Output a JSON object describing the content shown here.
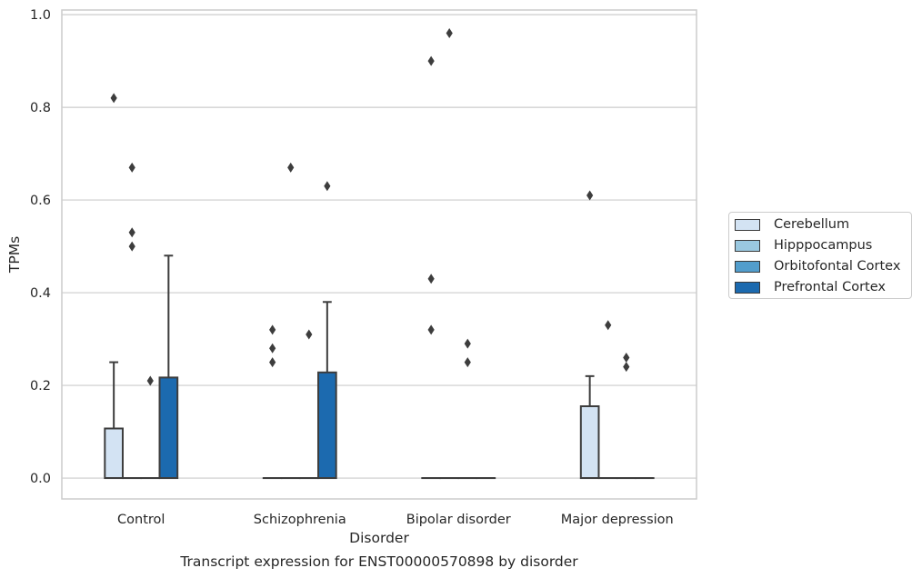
{
  "chart_data": {
    "type": "box",
    "title": "",
    "caption": "Transcript expression for ENST00000570898 by disorder",
    "xlabel": "Disorder",
    "ylabel": "TPMs",
    "ylim": [
      -0.045,
      1.01
    ],
    "yticks": [
      "0.0",
      "0.2",
      "0.4",
      "0.6",
      "0.8",
      "1.0"
    ],
    "ytick_values": [
      0.0,
      0.2,
      0.4,
      0.6,
      0.8,
      1.0
    ],
    "grid": true,
    "legend_position": "right",
    "categories": [
      "Control",
      "Schizophrenia",
      "Bipolar disorder",
      "Major depression"
    ],
    "series": [
      {
        "name": "Cerebellum",
        "color": "#d3e3f3",
        "boxes": [
          {
            "q1": 0.0,
            "median": 0.0,
            "q3": 0.107,
            "whisker_low": 0.0,
            "whisker_high": 0.25,
            "outliers": [
              0.82
            ]
          },
          {
            "q1": 0.0,
            "median": 0.0,
            "q3": 0.0,
            "whisker_low": 0.0,
            "whisker_high": 0.0,
            "outliers": [
              0.32,
              0.28,
              0.25
            ]
          },
          {
            "q1": 0.0,
            "median": 0.0,
            "q3": 0.0,
            "whisker_low": 0.0,
            "whisker_high": 0.0,
            "outliers": [
              0.9,
              0.43,
              0.32
            ]
          },
          {
            "q1": 0.0,
            "median": 0.0,
            "q3": 0.155,
            "whisker_low": 0.0,
            "whisker_high": 0.22,
            "outliers": [
              0.61
            ]
          }
        ]
      },
      {
        "name": "Hipppocampus",
        "color": "#9ac8e0",
        "boxes": [
          {
            "q1": 0.0,
            "median": 0.0,
            "q3": 0.0,
            "whisker_low": 0.0,
            "whisker_high": 0.0,
            "outliers": [
              0.67,
              0.53,
              0.5
            ]
          },
          {
            "q1": 0.0,
            "median": 0.0,
            "q3": 0.0,
            "whisker_low": 0.0,
            "whisker_high": 0.0,
            "outliers": [
              0.67
            ]
          },
          {
            "q1": 0.0,
            "median": 0.0,
            "q3": 0.0,
            "whisker_low": 0.0,
            "whisker_high": 0.0,
            "outliers": [
              0.96
            ]
          },
          {
            "q1": 0.0,
            "median": 0.0,
            "q3": 0.0,
            "whisker_low": 0.0,
            "whisker_high": 0.0,
            "outliers": [
              0.33
            ]
          }
        ]
      },
      {
        "name": "Orbitofontal Cortex",
        "color": "#529dcc",
        "boxes": [
          {
            "q1": 0.0,
            "median": 0.0,
            "q3": 0.0,
            "whisker_low": 0.0,
            "whisker_high": 0.0,
            "outliers": [
              0.21
            ]
          },
          {
            "q1": 0.0,
            "median": 0.0,
            "q3": 0.0,
            "whisker_low": 0.0,
            "whisker_high": 0.0,
            "outliers": [
              0.31
            ]
          },
          {
            "q1": 0.0,
            "median": 0.0,
            "q3": 0.0,
            "whisker_low": 0.0,
            "whisker_high": 0.0,
            "outliers": [
              0.29,
              0.25
            ]
          },
          {
            "q1": 0.0,
            "median": 0.0,
            "q3": 0.0,
            "whisker_low": 0.0,
            "whisker_high": 0.0,
            "outliers": [
              0.26,
              0.24
            ]
          }
        ]
      },
      {
        "name": "Prefrontal Cortex",
        "color": "#1c6aaf",
        "boxes": [
          {
            "q1": 0.0,
            "median": 0.0,
            "q3": 0.217,
            "whisker_low": 0.0,
            "whisker_high": 0.48,
            "outliers": []
          },
          {
            "q1": 0.0,
            "median": 0.0,
            "q3": 0.228,
            "whisker_low": 0.0,
            "whisker_high": 0.38,
            "outliers": [
              0.63
            ]
          },
          {
            "q1": 0.0,
            "median": 0.0,
            "q3": 0.0,
            "whisker_low": 0.0,
            "whisker_high": 0.0,
            "outliers": []
          },
          {
            "q1": 0.0,
            "median": 0.0,
            "q3": 0.0,
            "whisker_low": 0.0,
            "whisker_high": 0.0,
            "outliers": []
          }
        ]
      }
    ]
  }
}
